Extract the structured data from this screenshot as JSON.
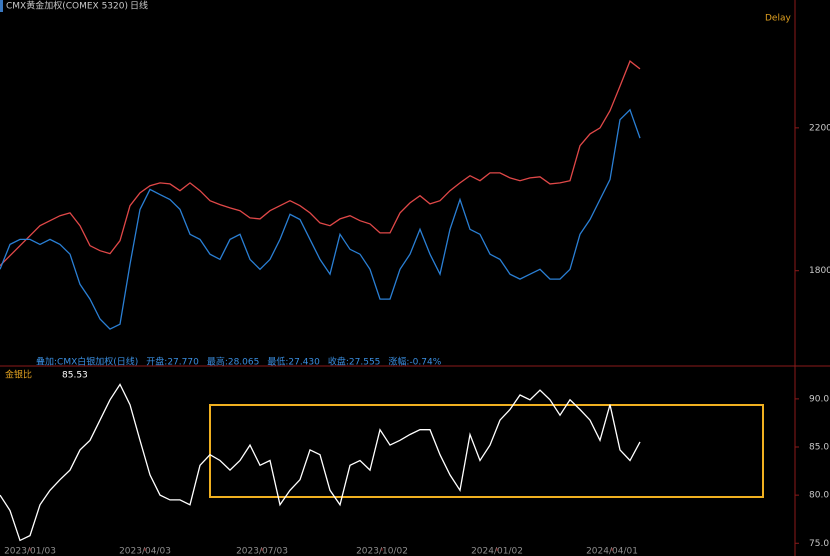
{
  "chart_data": [
    {
      "type": "line",
      "title": "CMX黄金加权(COMEX 5320)",
      "subtitle": "日线",
      "annotations": [
        "Delay"
      ],
      "overlay_legend": [
        "叠加:CMX白银加权(日线)",
        "开盘:27.770",
        "最高:28.065",
        "最低:27.430",
        "收盘:27.555",
        "涨幅:-0.74%"
      ],
      "ylim": [
        1550,
        2530
      ],
      "yticks": [
        {
          "value": 2200,
          "label": "2200.0"
        },
        1800
      ],
      "y2lim": [
        19,
        32.5
      ],
      "series": [
        {
          "color": "#e04848",
          "values": [
            1814,
            1842,
            1870,
            1898,
            1926,
            1940,
            1954,
            1962,
            1926,
            1870,
            1856,
            1848,
            1884,
            1982,
            2018,
            2038,
            2046,
            2043,
            2024,
            2046,
            2024,
            1996,
            1985,
            1976,
            1968,
            1948,
            1945,
            1968,
            1982,
            1996,
            1982,
            1962,
            1934,
            1926,
            1945,
            1954,
            1940,
            1931,
            1906,
            1906,
            1962,
            1990,
            2010,
            1987,
            1996,
            2024,
            2046,
            2066,
            2052,
            2074,
            2074,
            2060,
            2052,
            2060,
            2063,
            2043,
            2046,
            2052,
            2150,
            2183,
            2200,
            2248,
            2317,
            2387,
            2365
          ]
        },
        {
          "color": "#2a7fd4",
          "axis": "y2",
          "values": [
            22.5,
            23.46,
            23.65,
            23.65,
            23.46,
            23.65,
            23.46,
            23.08,
            21.92,
            21.35,
            20.58,
            20.19,
            20.38,
            22.69,
            24.81,
            25.58,
            25.38,
            25.19,
            24.81,
            23.85,
            23.65,
            23.08,
            22.88,
            23.65,
            23.85,
            22.88,
            22.5,
            22.88,
            23.65,
            24.62,
            24.42,
            23.65,
            22.88,
            22.31,
            23.85,
            23.27,
            23.08,
            22.5,
            21.35,
            21.35,
            22.5,
            23.08,
            24.04,
            23.08,
            22.31,
            24.04,
            25.19,
            24.04,
            23.85,
            23.08,
            22.88,
            22.31,
            22.12,
            22.31,
            22.5,
            22.12,
            22.12,
            22.5,
            23.85,
            24.42,
            25.19,
            25.96,
            28.27,
            28.65,
            27.56
          ]
        }
      ]
    },
    {
      "type": "line",
      "title": "金银比",
      "latest": 85.53,
      "ylim": [
        74.3,
        93
      ],
      "yticks": [
        {
          "value": 90,
          "label": "90.0"
        },
        {
          "value": 85,
          "label": "85.0"
        },
        {
          "value": 80,
          "label": "80.0"
        },
        {
          "value": 75,
          "label": "75.0"
        }
      ],
      "xticks": [
        {
          "value": 3,
          "label": "2023/01/03"
        },
        {
          "value": 14.5,
          "label": "2023/04/03"
        },
        {
          "value": 26.2,
          "label": "2023/07/03"
        },
        {
          "value": 38.2,
          "label": "2023/10/02"
        },
        {
          "value": 49.7,
          "label": "2024/01/02"
        },
        {
          "value": 61.2,
          "label": "2024/04/01"
        }
      ],
      "series": [
        {
          "color": "#ffffff",
          "values": [
            80.0,
            78.4,
            75.3,
            75.8,
            79.0,
            80.5,
            81.6,
            82.6,
            84.7,
            85.7,
            87.8,
            89.9,
            91.5,
            89.4,
            85.7,
            82.1,
            80.0,
            79.5,
            79.5,
            79.0,
            83.1,
            84.2,
            83.6,
            82.6,
            83.6,
            85.2,
            83.1,
            83.6,
            79.0,
            80.5,
            81.6,
            84.7,
            84.2,
            80.5,
            79.0,
            83.1,
            83.6,
            82.6,
            86.8,
            85.2,
            85.7,
            86.3,
            86.8,
            86.8,
            84.2,
            82.1,
            80.5,
            86.3,
            83.6,
            85.2,
            87.8,
            88.9,
            90.4,
            89.9,
            90.9,
            89.9,
            88.3,
            89.9,
            88.9,
            87.8,
            85.7,
            89.4,
            84.7,
            83.6,
            85.53
          ]
        }
      ]
    }
  ]
}
